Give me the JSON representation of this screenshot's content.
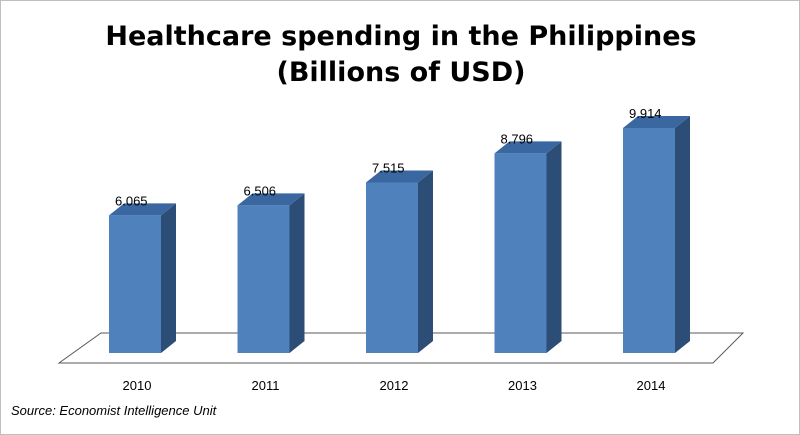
{
  "chart_data": {
    "type": "bar",
    "title": "Healthcare spending in the Philippines (Billions of USD)",
    "categories": [
      "2010",
      "2011",
      "2012",
      "2013",
      "2014"
    ],
    "values": [
      6.065,
      6.506,
      7.515,
      8.796,
      9.914
    ],
    "color": "#4f81bd",
    "source": "Source: Economist Intelligence Unit"
  }
}
